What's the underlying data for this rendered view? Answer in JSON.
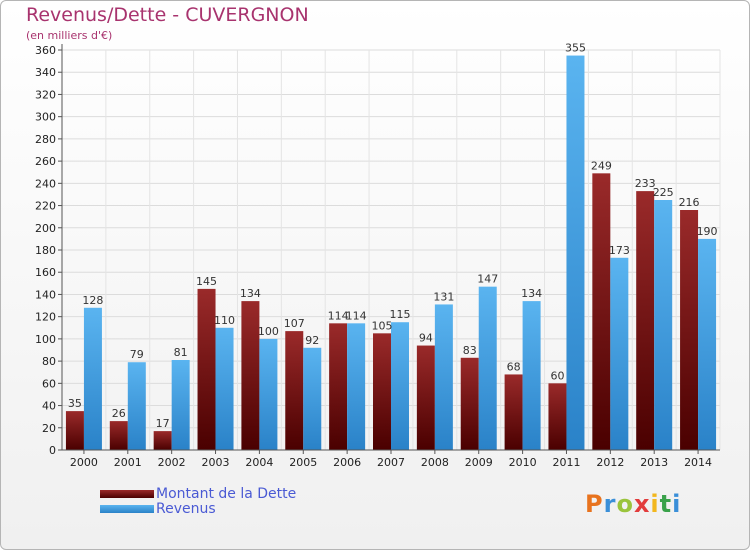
{
  "chart_data": {
    "type": "bar",
    "title": "Revenus/Dette - CUVERGNON",
    "subtitle": "(en milliers d'€)",
    "categories": [
      "2000",
      "2001",
      "2002",
      "2003",
      "2004",
      "2005",
      "2006",
      "2007",
      "2008",
      "2009",
      "2010",
      "2011",
      "2012",
      "2013",
      "2014"
    ],
    "series": [
      {
        "name": "Montant de la Dette",
        "color": "#6e0c0c",
        "values": [
          35,
          26,
          17,
          145,
          134,
          107,
          114,
          105,
          94,
          83,
          68,
          60,
          249,
          233,
          216
        ]
      },
      {
        "name": "Revenus",
        "color": "#4aa3e4",
        "values": [
          128,
          79,
          81,
          110,
          100,
          92,
          114,
          115,
          131,
          147,
          134,
          355,
          173,
          225,
          190
        ]
      }
    ],
    "ylim": [
      0,
      360
    ],
    "yticks": [
      0,
      20,
      40,
      60,
      80,
      100,
      120,
      140,
      160,
      180,
      200,
      220,
      240,
      260,
      280,
      300,
      320,
      340,
      360
    ],
    "grid": true,
    "legend_position": "bottom-left"
  },
  "logo": {
    "text": "Proxiti",
    "colors": [
      "#e8731e",
      "#3a8fd8",
      "#9ac43c",
      "#e23c3c",
      "#f2b71e",
      "#3aa24b",
      "#3a8fd8"
    ]
  }
}
